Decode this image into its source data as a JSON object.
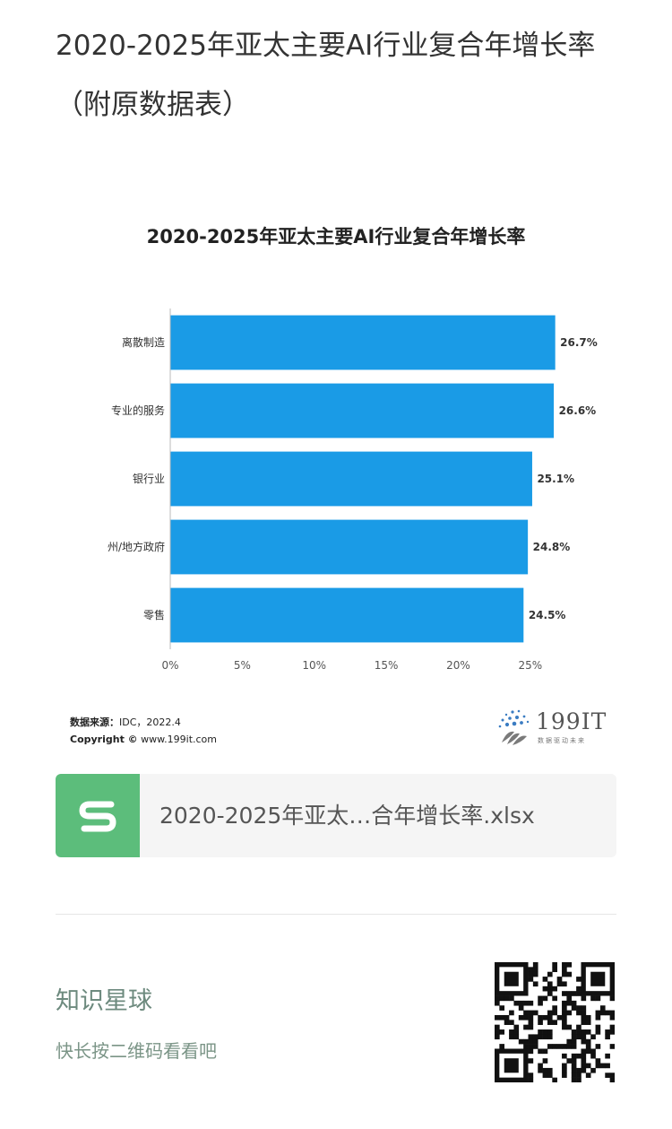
{
  "article": {
    "title": "2020-2025年亚太主要AI行业复合年增长率（附原数据表）"
  },
  "chart_data": {
    "type": "bar",
    "orientation": "horizontal",
    "title": "2020-2025年亚太主要AI行业复合年增长率",
    "categories": [
      "离散制造",
      "专业的服务",
      "银行业",
      "州/地方政府",
      "零售"
    ],
    "values": [
      26.7,
      26.6,
      25.1,
      24.8,
      24.5
    ],
    "data_labels": [
      "26.7%",
      "26.6%",
      "25.1%",
      "24.8%",
      "24.5%"
    ],
    "x_ticks": [
      "0%",
      "5%",
      "10%",
      "15%",
      "20%",
      "25%"
    ],
    "xlim": [
      0,
      27
    ],
    "grid": false,
    "bar_color": "#1a9be6",
    "xlabel": "",
    "ylabel": ""
  },
  "source": {
    "label": "数据来源：",
    "text": "IDC，2022.4",
    "copyright_label": "Copyright ©",
    "copyright_site": "www.199it.com"
  },
  "brand": {
    "name": "199IT",
    "tagline": "数据驱动未来"
  },
  "attachment": {
    "file_name": "2020-2025年亚太…合年增长率.xlsx",
    "icon": "spreadsheet-s-icon",
    "icon_color": "#5cbd7b"
  },
  "planet": {
    "title": "知识星球",
    "hint": "快长按二维码看看吧"
  }
}
